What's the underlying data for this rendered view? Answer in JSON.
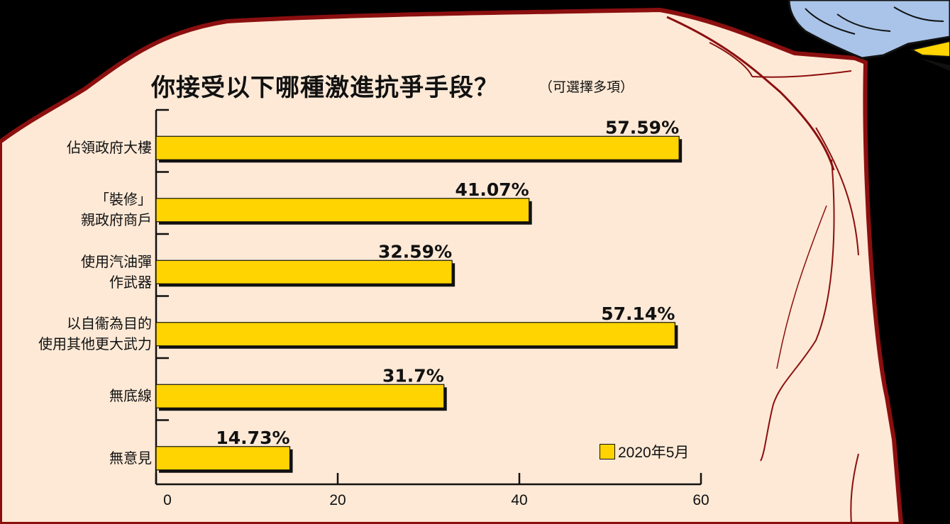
{
  "chart_data": {
    "type": "bar",
    "orientation": "horizontal",
    "title": "你接受以下哪種激進抗爭手段？",
    "subtitle": "（可選擇多項）",
    "categories": [
      [
        "佔領政府大樓"
      ],
      [
        "「裝修」",
        "親政府商戶"
      ],
      [
        "使用汽油彈",
        "作武器"
      ],
      [
        "以自衞為目的",
        "使用其他更大武力"
      ],
      [
        "無底線"
      ],
      [
        "無意見"
      ]
    ],
    "series": [
      {
        "name": "2020年5月",
        "values": [
          57.59,
          41.07,
          32.59,
          57.14,
          31.7,
          14.73
        ],
        "color": "#ffd400"
      }
    ],
    "value_labels": [
      "57.59%",
      "41.07%",
      "32.59%",
      "57.14%",
      "31.7%",
      "14.73%"
    ],
    "xlim": [
      0,
      60
    ],
    "xticks": [
      "0",
      "20",
      "40",
      "60"
    ],
    "xlabel": "",
    "ylabel": "",
    "grid": false,
    "legend_position": "bottom-right"
  },
  "colors": {
    "bar": "#ffd400",
    "shadow": "#111111",
    "background_skin": "#fde9d6",
    "outline_red": "#8b0f0f"
  }
}
